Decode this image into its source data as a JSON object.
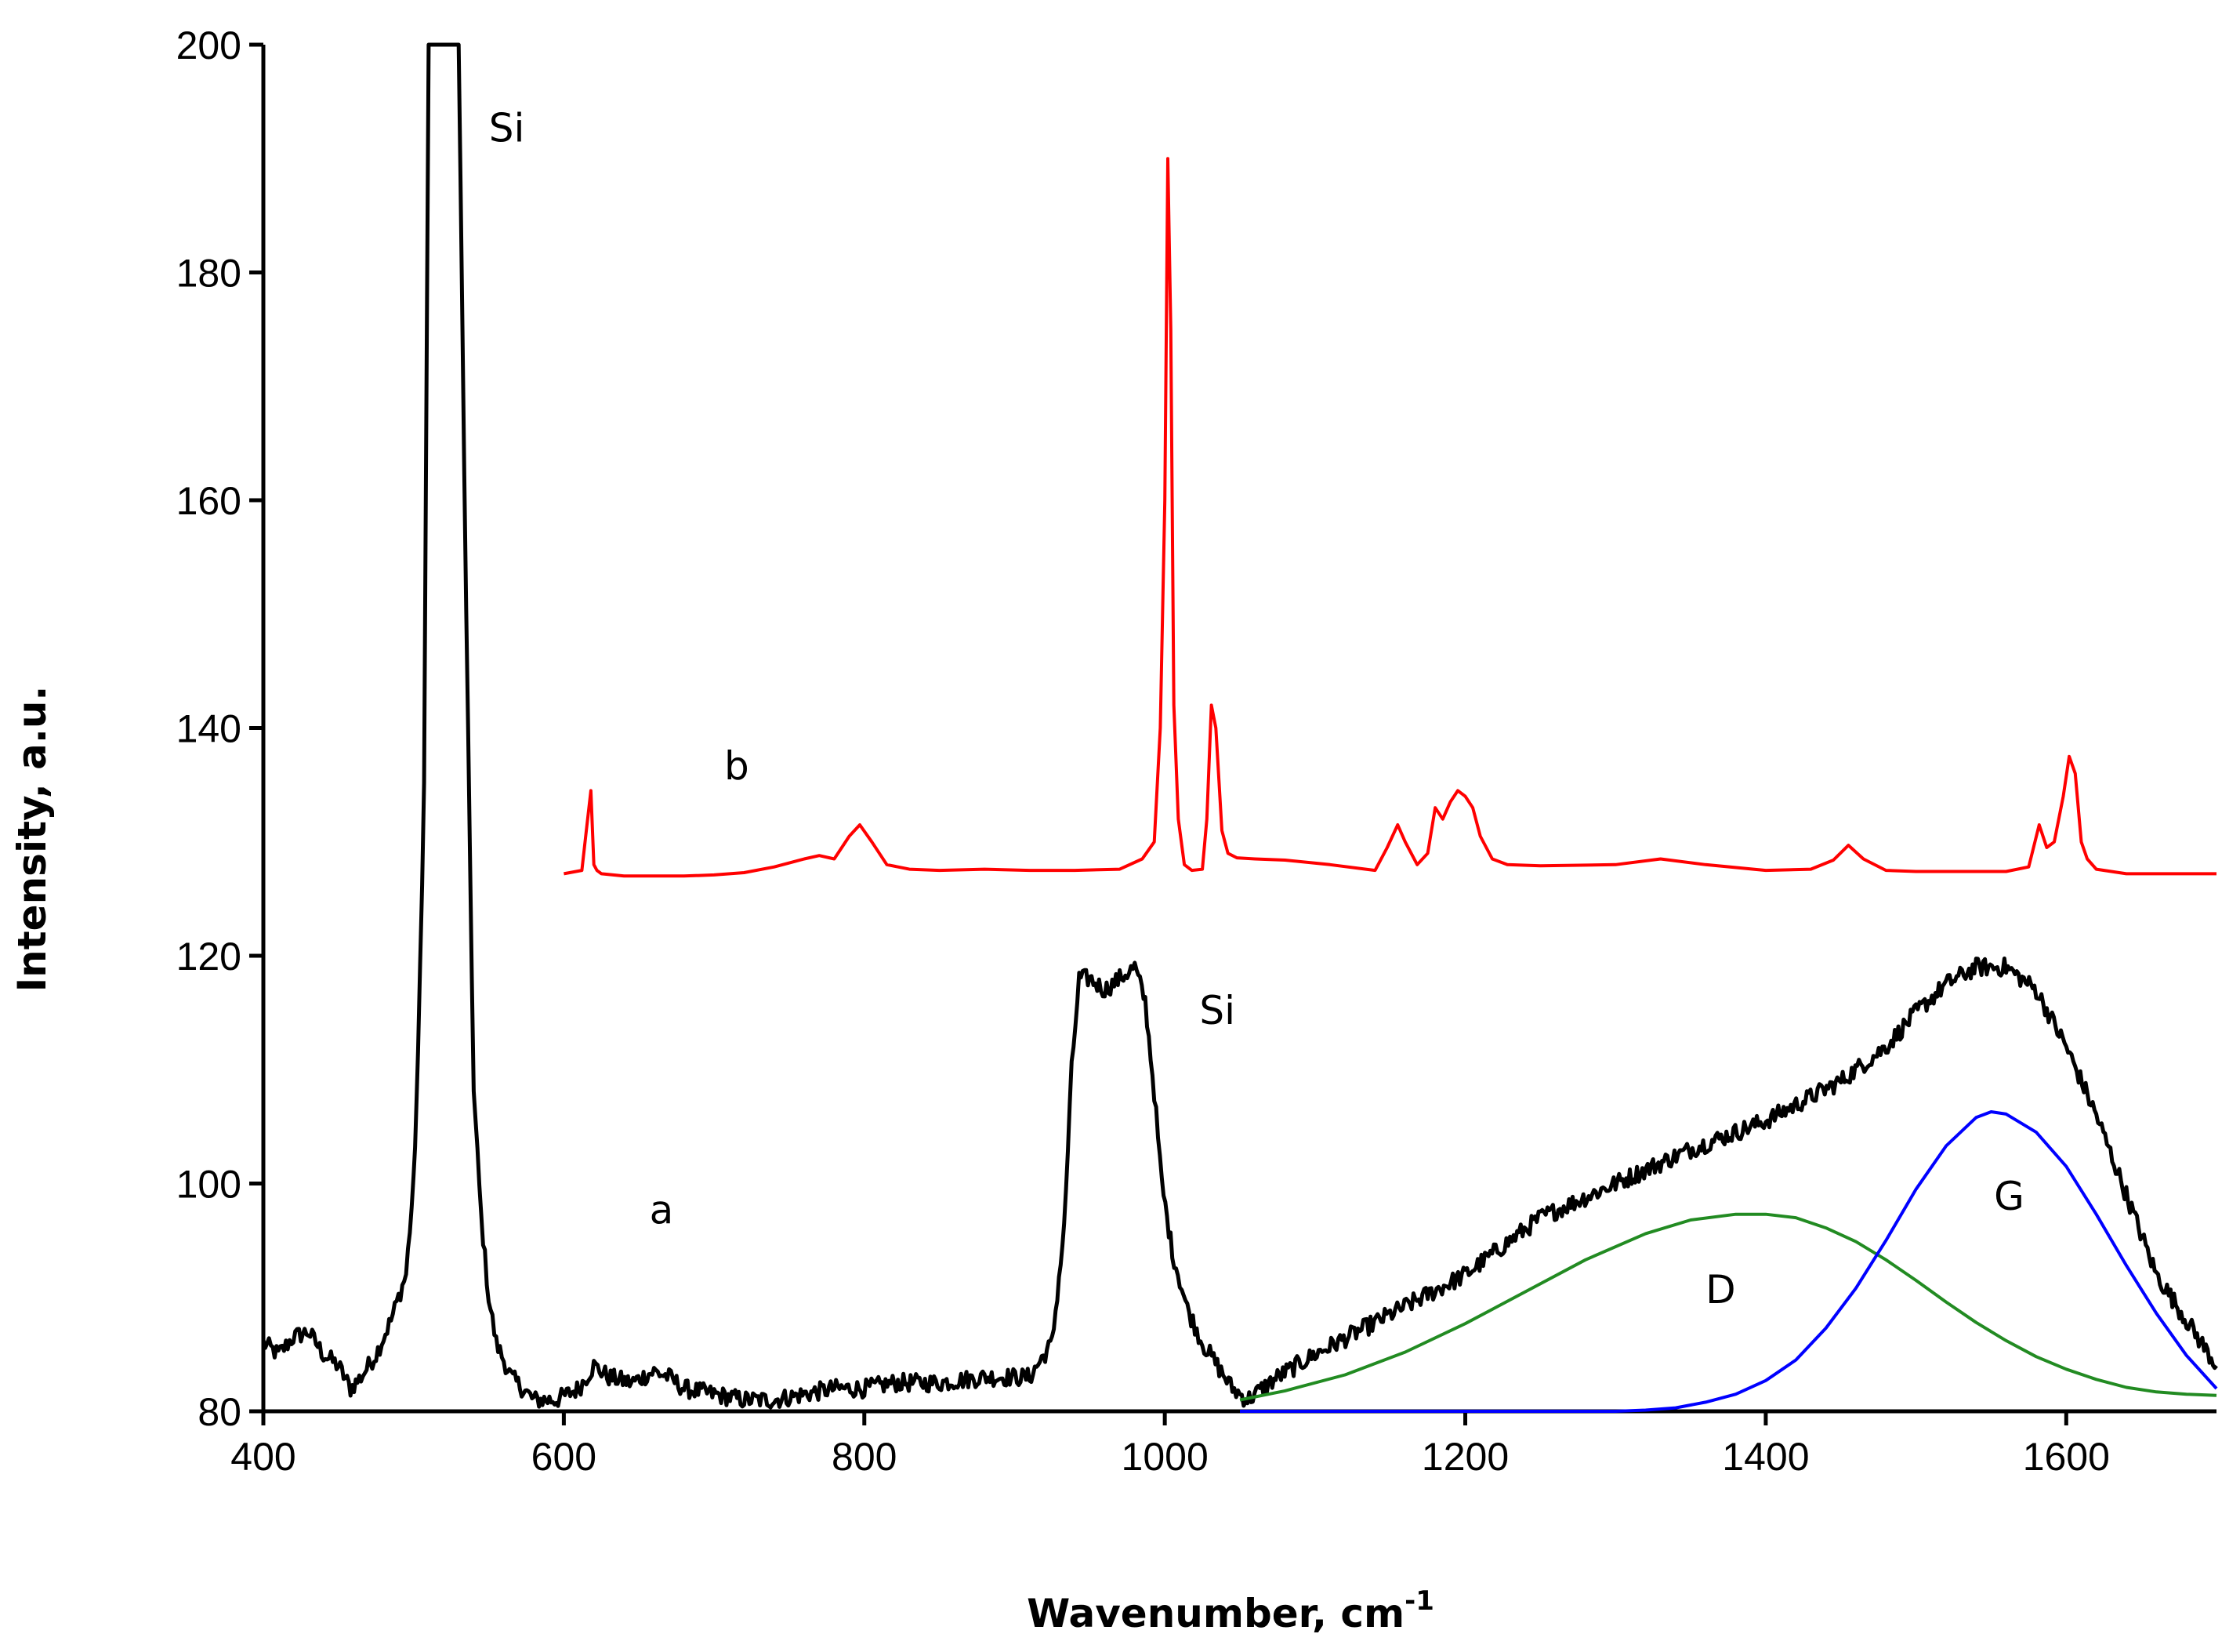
{
  "chart_data": {
    "type": "line",
    "title": "",
    "xlabel": "Wavenumber, cm",
    "xlabel_superscript": "-1",
    "ylabel": "Intensity, a.u.",
    "xlim": [
      400,
      1700
    ],
    "ylim": [
      80,
      200
    ],
    "xticks": [
      400,
      600,
      800,
      1000,
      1200,
      1400,
      1600
    ],
    "yticks": [
      80,
      100,
      120,
      140,
      160,
      180,
      200
    ],
    "grid": false,
    "series": [
      {
        "name": "a",
        "color": "#000000",
        "x": [
          400,
          410,
          420,
          430,
          440,
          450,
          458,
          465,
          475,
          485,
          495,
          500,
          503,
          507,
          510,
          515,
          520,
          525,
          530,
          535,
          540,
          545,
          550,
          555,
          565,
          580,
          595,
          610,
          620,
          630,
          645,
          660,
          670,
          680,
          700,
          720,
          740,
          760,
          780,
          800,
          820,
          850,
          880,
          910,
          925,
          933,
          938,
          943,
          950,
          960,
          970,
          980,
          987,
          993,
          998,
          1005,
          1015,
          1025,
          1035,
          1045,
          1055,
          1075,
          1100,
          1150,
          1200,
          1250,
          1300,
          1350,
          1400,
          1450,
          1480,
          1500,
          1520,
          1540,
          1560,
          1580,
          1600,
          1620,
          1640,
          1660,
          1680,
          1700
        ],
        "y": [
          86,
          85,
          86.5,
          87,
          85,
          84,
          82,
          83,
          85,
          88,
          92,
          100,
          111,
          135,
          200,
          200,
          200,
          200,
          200,
          150,
          108,
          97,
          90,
          86,
          83,
          81,
          81,
          82,
          84,
          83,
          82.5,
          83.5,
          83,
          82,
          81.5,
          81,
          81,
          81.5,
          82,
          82,
          82.5,
          82.5,
          83,
          83,
          86,
          96,
          110,
          118,
          118,
          117,
          118,
          119,
          116,
          108,
          100,
          94,
          89,
          86,
          84,
          82,
          81,
          83,
          85,
          88.5,
          92,
          97,
          100,
          103,
          105.5,
          109,
          112,
          115,
          117.5,
          119,
          119,
          117,
          112,
          106,
          99,
          92,
          88,
          84
        ]
      },
      {
        "name": "b",
        "color": "#ff0000",
        "x": [
          600,
          612,
          615,
          618,
          620,
          622,
          625,
          640,
          660,
          680,
          700,
          720,
          740,
          760,
          770,
          780,
          790,
          797,
          805,
          815,
          830,
          850,
          880,
          910,
          940,
          970,
          985,
          993,
          997,
          1000,
          1002,
          1004,
          1006,
          1009,
          1013,
          1018,
          1025,
          1028,
          1031,
          1034,
          1038,
          1042,
          1048,
          1060,
          1080,
          1110,
          1140,
          1148,
          1155,
          1160,
          1168,
          1175,
          1180,
          1185,
          1190,
          1195,
          1200,
          1205,
          1210,
          1218,
          1228,
          1250,
          1300,
          1330,
          1360,
          1400,
          1430,
          1445,
          1455,
          1465,
          1480,
          1500,
          1530,
          1560,
          1575,
          1582,
          1587,
          1592,
          1598,
          1602,
          1606,
          1610,
          1614,
          1620,
          1640,
          1660,
          1680,
          1700
        ],
        "y": [
          127.2,
          127.5,
          131,
          134.5,
          128,
          127.5,
          127.2,
          127,
          127,
          127,
          127.1,
          127.3,
          127.8,
          128.5,
          128.8,
          128.5,
          130.5,
          131.5,
          130,
          128,
          127.6,
          127.5,
          127.6,
          127.5,
          127.5,
          127.6,
          128.5,
          130,
          140,
          160,
          190,
          175,
          142,
          132,
          128,
          127.5,
          127.6,
          132,
          142,
          140,
          131,
          129,
          128.6,
          128.5,
          128.4,
          128,
          127.5,
          129.5,
          131.5,
          130,
          128,
          129,
          133,
          132,
          133.5,
          134.5,
          134,
          133,
          130.5,
          128.5,
          128,
          127.9,
          128,
          128.5,
          128,
          127.5,
          127.6,
          128.4,
          129.7,
          128.5,
          127.5,
          127.4,
          127.4,
          127.4,
          127.8,
          131.5,
          129.5,
          130,
          134,
          137.5,
          136,
          130,
          128.5,
          127.6,
          127.2,
          127.2,
          127.2,
          127.2
        ]
      },
      {
        "name": "D",
        "color": "#228b22",
        "x": [
          1050,
          1080,
          1120,
          1160,
          1200,
          1240,
          1280,
          1320,
          1350,
          1380,
          1400,
          1420,
          1440,
          1460,
          1480,
          1500,
          1520,
          1540,
          1560,
          1580,
          1600,
          1620,
          1640,
          1660,
          1680,
          1700
        ],
        "y": [
          81,
          81.8,
          83.2,
          85.2,
          87.7,
          90.5,
          93.3,
          95.6,
          96.8,
          97.3,
          97.3,
          97,
          96.1,
          94.9,
          93.3,
          91.5,
          89.6,
          87.8,
          86.2,
          84.8,
          83.7,
          82.8,
          82.1,
          81.7,
          81.5,
          81.4
        ]
      },
      {
        "name": "G",
        "color": "#0000ff",
        "x": [
          1050,
          1300,
          1320,
          1340,
          1360,
          1380,
          1400,
          1420,
          1440,
          1460,
          1480,
          1500,
          1520,
          1540,
          1550,
          1560,
          1580,
          1600,
          1620,
          1640,
          1660,
          1680,
          1700
        ],
        "y": [
          80,
          80,
          80.1,
          80.3,
          80.8,
          81.5,
          82.7,
          84.5,
          87.3,
          90.8,
          95,
          99.5,
          103.3,
          105.8,
          106.3,
          106.1,
          104.5,
          101.5,
          97.3,
          92.8,
          88.6,
          84.9,
          82
        ]
      }
    ],
    "annotations": [
      {
        "text": "Si",
        "x": 562,
        "y": 191.5
      },
      {
        "text": "Si",
        "x": 1035,
        "y": 114
      },
      {
        "text": "a",
        "x": 665,
        "y": 96.5
      },
      {
        "text": "b",
        "x": 715,
        "y": 135.5
      },
      {
        "text": "D",
        "x": 1370,
        "y": 89.5
      },
      {
        "text": "G",
        "x": 1562,
        "y": 97.7
      }
    ]
  }
}
